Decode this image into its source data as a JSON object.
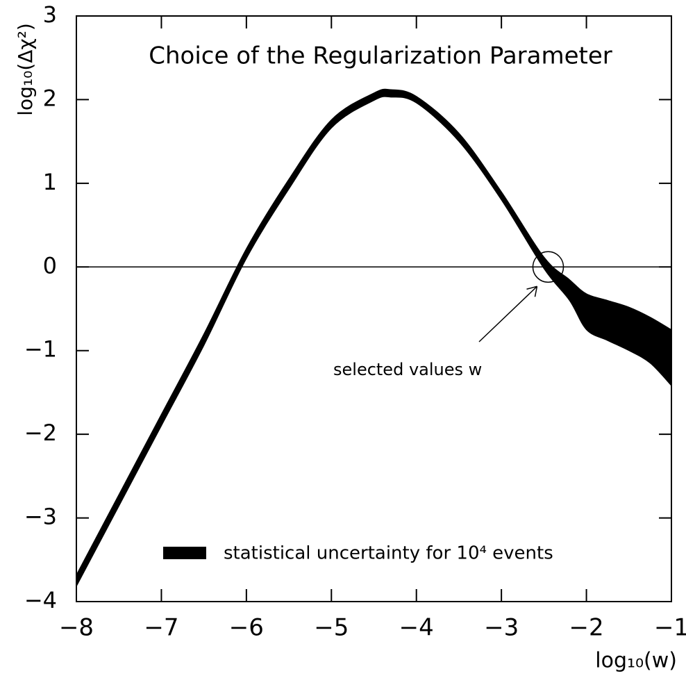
{
  "chart_data": {
    "type": "band",
    "title": "Choice of the Regularization Parameter",
    "xlabel": "log₁₀(w)",
    "ylabel": "log₁₀(Δχ²)",
    "x": [
      -8,
      -7.5,
      -7,
      -6.5,
      -6,
      -5.5,
      -5,
      -4.5,
      -4.3,
      -4,
      -3.5,
      -3,
      -2.5,
      -2.2,
      -2,
      -1.75,
      -1.5,
      -1.25,
      -1
    ],
    "series": [
      {
        "name": "statistical uncertainty for 10⁴ events",
        "color": "#000000",
        "upper": [
          -3.68,
          -2.72,
          -1.76,
          -0.8,
          0.22,
          1.05,
          1.76,
          2.08,
          2.12,
          2.04,
          1.6,
          0.9,
          0.12,
          -0.15,
          -0.32,
          -0.4,
          -0.48,
          -0.6,
          -0.75
        ],
        "lower": [
          -3.82,
          -2.86,
          -1.9,
          -0.94,
          0.1,
          0.93,
          1.66,
          1.99,
          2.03,
          1.96,
          1.5,
          0.8,
          -0.02,
          -0.4,
          -0.75,
          -0.88,
          -1.0,
          -1.15,
          -1.42
        ]
      }
    ],
    "hline": 0,
    "annotations": [
      {
        "text": "selected values w",
        "x": -2.45,
        "y": 0
      }
    ],
    "xlim": [
      -8,
      -1
    ],
    "ylim": [
      -4,
      3
    ],
    "xticks": [
      {
        "value": -8,
        "label": "−8"
      },
      {
        "value": -7,
        "label": "−7"
      },
      {
        "value": -6,
        "label": "−6"
      },
      {
        "value": -5,
        "label": "−5"
      },
      {
        "value": -4,
        "label": "−4"
      },
      {
        "value": -3,
        "label": "−3"
      },
      {
        "value": -2,
        "label": "−2"
      },
      {
        "value": -1,
        "label": "−1"
      }
    ],
    "yticks": [
      {
        "value": -4,
        "label": "−4"
      },
      {
        "value": -3,
        "label": "−3"
      },
      {
        "value": -2,
        "label": "−2"
      },
      {
        "value": -1,
        "label": "−1"
      },
      0,
      1,
      2,
      3
    ]
  }
}
